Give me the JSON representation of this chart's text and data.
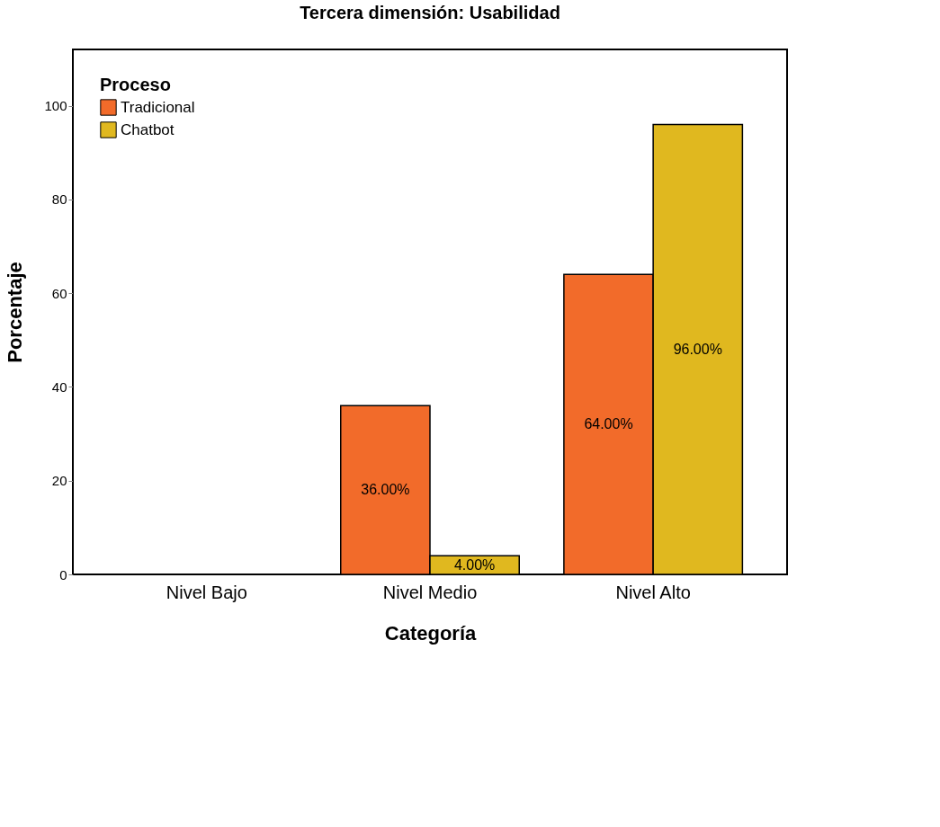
{
  "chart_data": {
    "type": "bar",
    "title": "Tercera dimensión: Usabilidad",
    "xlabel": "Categoría",
    "ylabel": "Porcentaje",
    "legend_title": "Proceso",
    "categories": [
      "Nivel Bajo",
      "Nivel Medio",
      "Nivel Alto"
    ],
    "series": [
      {
        "name": "Tradicional",
        "color": "#f26b2a",
        "values": [
          0,
          36,
          64
        ],
        "value_labels": [
          null,
          "36.00%",
          "64.00%"
        ]
      },
      {
        "name": "Chatbot",
        "color": "#e0b81f",
        "values": [
          0,
          4,
          96
        ],
        "value_labels": [
          null,
          "4.00%",
          "96.00%"
        ]
      }
    ],
    "ylim": [
      0,
      112
    ],
    "yticks": [
      0,
      20,
      40,
      60,
      80,
      100
    ],
    "grid": false,
    "legend": "top left"
  }
}
